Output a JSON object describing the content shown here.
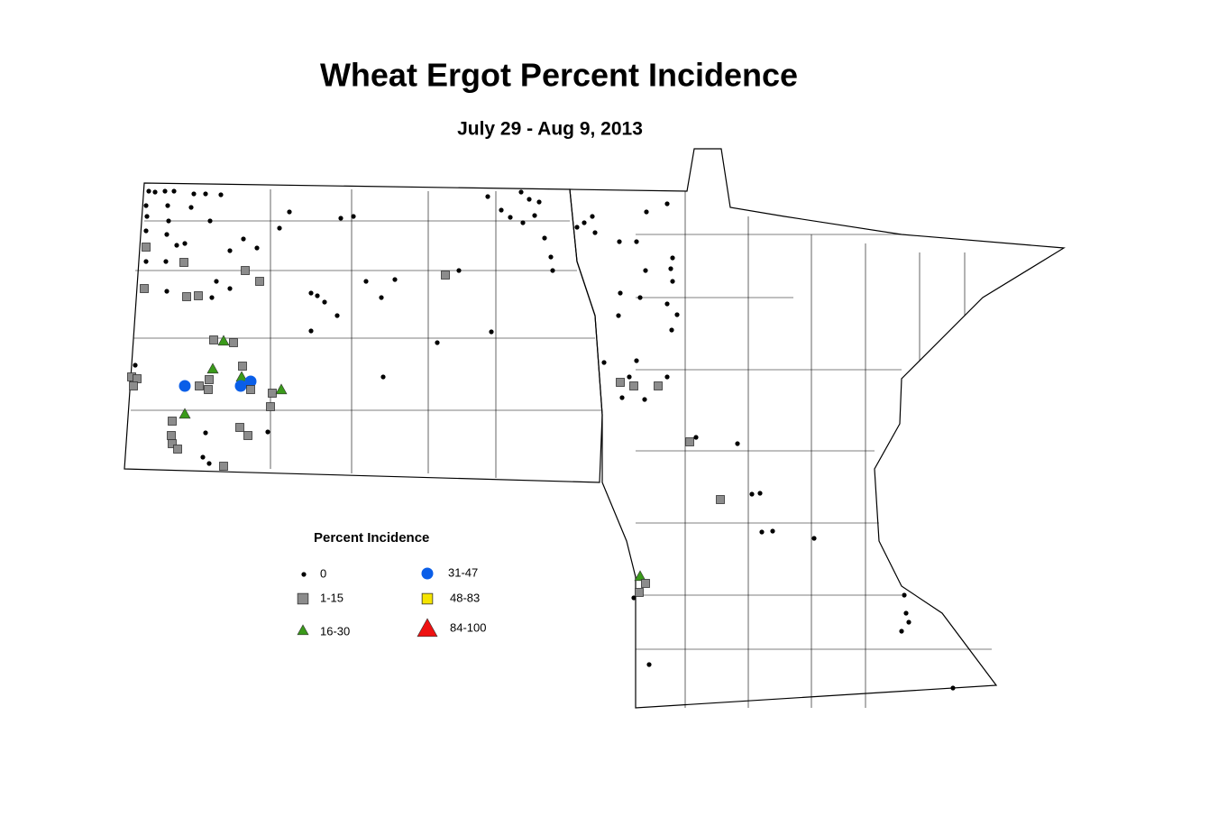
{
  "title": "Wheat Ergot Percent Incidence",
  "subtitle": "July 29 - Aug 9, 2013",
  "legend": {
    "title": "Percent Incidence",
    "items": [
      {
        "label": "0",
        "color": "#000000"
      },
      {
        "label": "1-15",
        "color": "#8c8c8c"
      },
      {
        "label": "16-30",
        "color": "#3a9a1a"
      },
      {
        "label": "31-47",
        "color": "#0a5ee8"
      },
      {
        "label": "48-83",
        "color": "#f5e400"
      },
      {
        "label": "84-100",
        "color": "#ee1111"
      }
    ]
  }
}
